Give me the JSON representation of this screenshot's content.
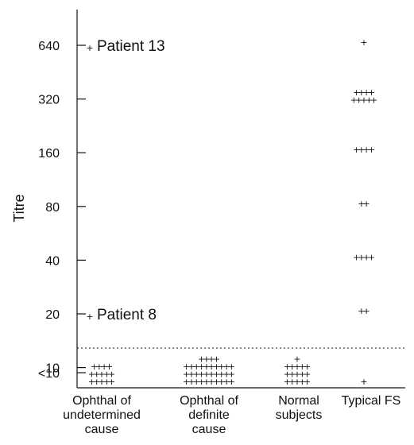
{
  "chart_data": {
    "type": "scatter",
    "y_label": "Titre",
    "y_scale": "log2",
    "y_ticks": [
      "640",
      "320",
      "160",
      "80",
      "40",
      "20",
      "10",
      "<10"
    ],
    "categories": [
      {
        "lines": [
          "Ophthal of",
          "undetermined",
          "cause"
        ]
      },
      {
        "lines": [
          "Ophthal of",
          "definite",
          "cause"
        ]
      },
      {
        "lines": [
          "Normal",
          "subjects"
        ]
      },
      {
        "lines": [
          "Typical FS"
        ]
      }
    ],
    "reference_line": {
      "value": 10,
      "style": "dotted"
    },
    "annotations": [
      {
        "text": "Patient 13",
        "value": 640,
        "category": 0
      },
      {
        "text": "Patient 8",
        "value": 20,
        "category": 0
      }
    ],
    "points": [
      {
        "category": 0,
        "value": "<10",
        "rows": [
          4,
          5,
          5
        ]
      },
      {
        "category": 1,
        "value": "<10",
        "rows": [
          4,
          10,
          10,
          10
        ]
      },
      {
        "category": 2,
        "value": "<10",
        "rows": [
          1,
          5,
          5,
          5
        ]
      },
      {
        "category": 3,
        "value": "<10",
        "rows": [
          1
        ]
      },
      {
        "category": 3,
        "value": 20,
        "rows": [
          2
        ]
      },
      {
        "category": 3,
        "value": 40,
        "rows": [
          4
        ]
      },
      {
        "category": 3,
        "value": 80,
        "rows": [
          2
        ]
      },
      {
        "category": 3,
        "value": 160,
        "rows": [
          4
        ]
      },
      {
        "category": 3,
        "value": 320,
        "rows": [
          4,
          5
        ]
      },
      {
        "category": 3,
        "value": 640,
        "rows": [
          1
        ]
      }
    ]
  }
}
